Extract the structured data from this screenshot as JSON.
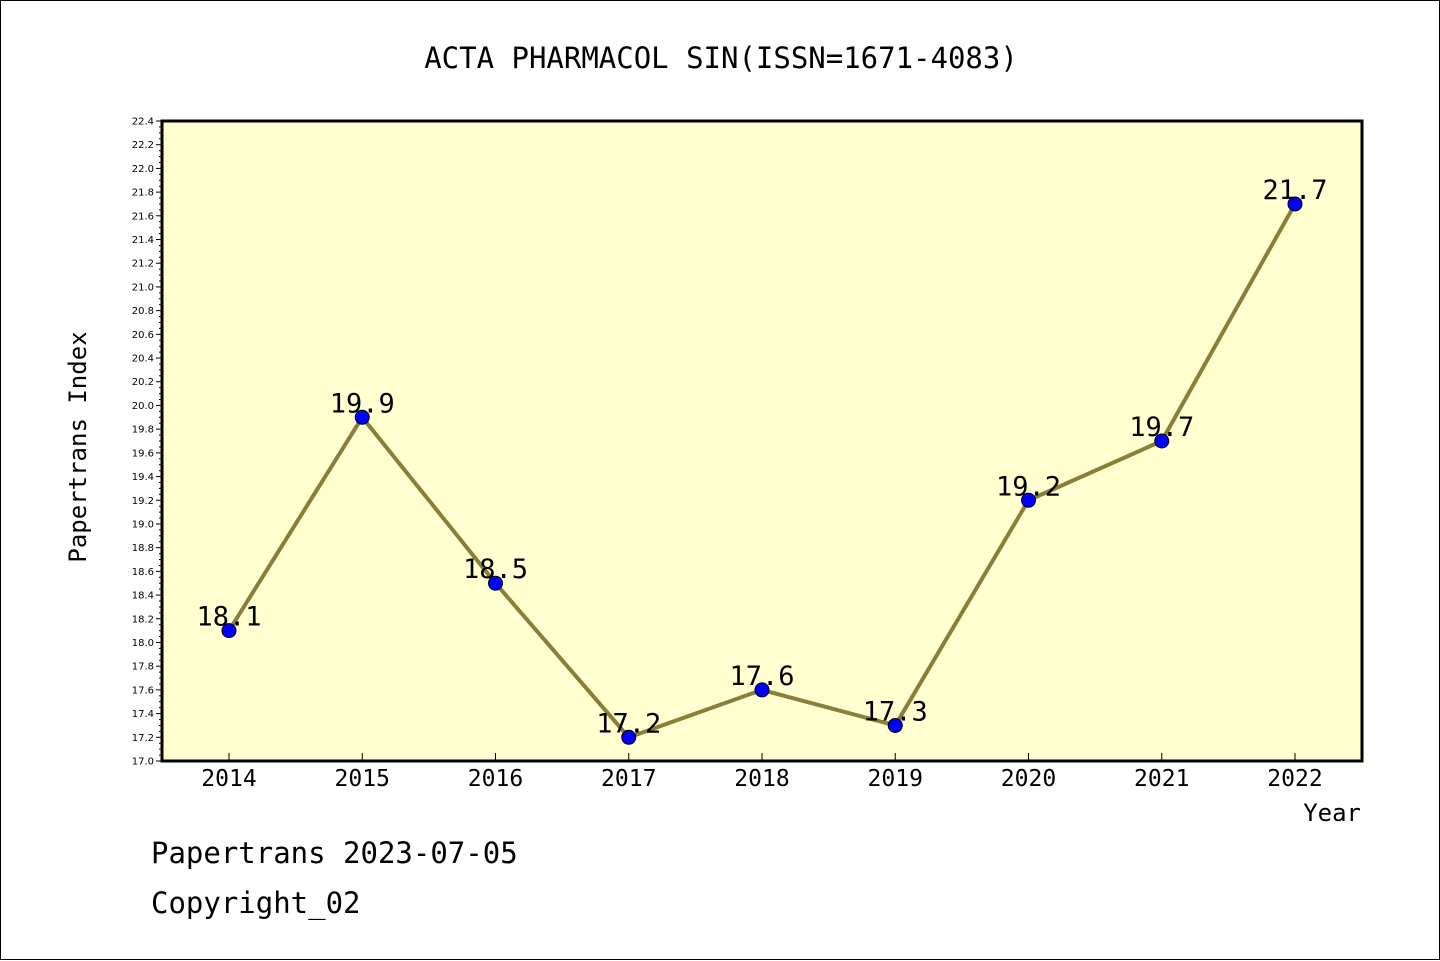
{
  "chart_data": {
    "type": "line",
    "title": "ACTA PHARMACOL SIN(ISSN=1671-4083)",
    "xlabel": "Year",
    "ylabel": "Papertrans Index",
    "categories": [
      "2014",
      "2015",
      "2016",
      "2017",
      "2018",
      "2019",
      "2020",
      "2021",
      "2022"
    ],
    "values": [
      18.1,
      19.9,
      18.5,
      17.2,
      17.6,
      17.3,
      19.2,
      19.7,
      21.7
    ],
    "data_labels": [
      "18.1",
      "19.9",
      "18.5",
      "17.2",
      "17.6",
      "17.3",
      "19.2",
      "19.7",
      "21.7"
    ],
    "ylim": [
      17.0,
      22.4
    ],
    "yticks": [
      "17.0",
      "17.2",
      "17.4",
      "17.6",
      "17.8",
      "18.0",
      "18.2",
      "18.4",
      "18.6",
      "18.8",
      "19.0",
      "19.2",
      "19.4",
      "19.6",
      "19.8",
      "20.0",
      "20.2",
      "20.4",
      "20.6",
      "20.8",
      "21.0",
      "21.2",
      "21.4",
      "21.6",
      "21.8",
      "22.0",
      "22.2",
      "22.4"
    ],
    "grid": false,
    "colors": {
      "plot_background": "#ffffd0",
      "line": "#8b7d3a",
      "marker": "#0000ff"
    }
  },
  "footer": {
    "line1": "Papertrans 2023-07-05",
    "line2": "Copyright_02"
  }
}
